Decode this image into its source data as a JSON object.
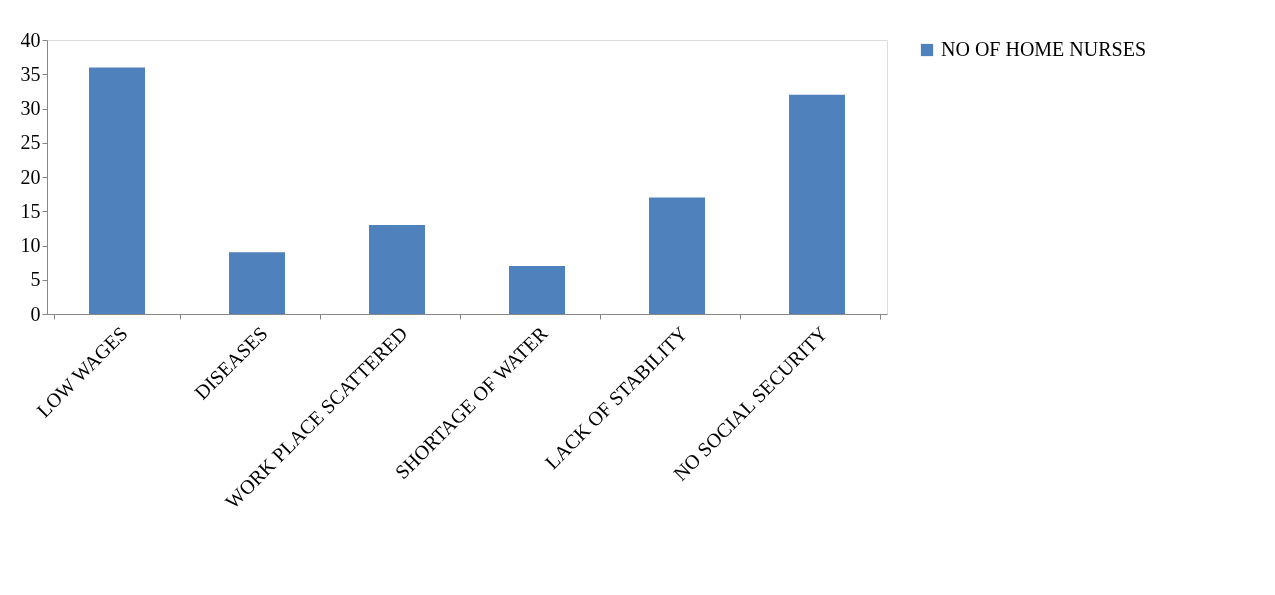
{
  "chart_data": {
    "type": "bar",
    "categories": [
      "LOW WAGES",
      "DISEASES",
      "WORK PLACE SCATTERED",
      "SHORTAGE OF WATER",
      "LACK OF STABILITY",
      "NO SOCIAL SECURITY"
    ],
    "series": [
      {
        "name": "NO OF HOME NURSES",
        "color": "#4f81bd",
        "values": [
          36,
          9,
          13,
          7,
          17,
          32
        ]
      }
    ],
    "ylim": [
      0,
      40
    ],
    "yticks": [
      0,
      5,
      10,
      15,
      20,
      25,
      30,
      35,
      40
    ],
    "grid": false,
    "legend": "right"
  }
}
